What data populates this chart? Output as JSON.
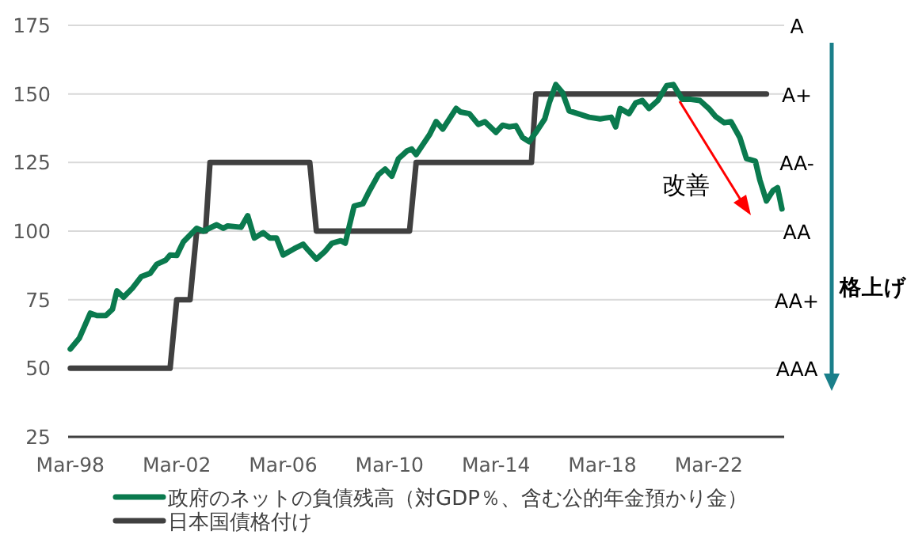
{
  "chart_data": {
    "type": "line",
    "annotations": [
      "改善",
      "格上げ",
      "AAA",
      "AA+",
      "AA",
      "AA-",
      "A+",
      "A"
    ],
    "x": [
      "1998-03",
      "1998-07",
      "1998-12",
      "1999-03",
      "1999-07",
      "1999-10",
      "1999-12",
      "2000-03",
      "2000-07",
      "2000-11",
      "2001-03",
      "2001-06",
      "2001-10",
      "2001-12",
      "2002-03",
      "2002-06",
      "2002-12",
      "2003-03",
      "2003-09",
      "2003-12",
      "2004-02",
      "2004-08",
      "2004-11",
      "2005-02",
      "2005-06",
      "2005-09",
      "2005-12",
      "2006-03",
      "2006-08",
      "2006-12",
      "2007-02",
      "2007-06",
      "2007-10",
      "2008-01",
      "2008-05",
      "2008-07",
      "2008-11",
      "2009-03",
      "2009-06",
      "2009-10",
      "2010-01",
      "2010-04",
      "2010-07",
      "2010-11",
      "2011-01",
      "2011-03",
      "2011-09",
      "2011-12",
      "2012-03",
      "2012-09",
      "2012-11",
      "2013-03",
      "2013-07",
      "2013-10",
      "2014-03",
      "2014-06",
      "2014-09",
      "2014-12",
      "2015-03",
      "2015-06",
      "2015-09",
      "2016-01",
      "2016-03",
      "2016-06",
      "2016-09",
      "2016-12",
      "2017-04",
      "2017-09",
      "2018-02",
      "2018-07",
      "2018-09",
      "2018-11",
      "2019-03",
      "2019-06",
      "2019-09",
      "2019-12",
      "2020-04",
      "2020-08",
      "2020-11",
      "2021-03",
      "2021-07",
      "2021-11",
      "2022-03",
      "2022-06",
      "2022-10",
      "2023-01",
      "2023-05",
      "2023-08",
      "2023-12",
      "2024-02",
      "2024-05",
      "2024-08",
      "2024-10",
      "2024-12"
    ],
    "series": [
      {
        "name": "政府のネットの負債残高（対GDP％、含む公的年金預かり金）",
        "color": "#0a7a4e",
        "values": [
          57.0,
          60.9,
          70.1,
          69.2,
          69.2,
          71.5,
          78.2,
          75.9,
          79.2,
          83.4,
          84.6,
          87.9,
          89.4,
          91.3,
          91.1,
          96.1,
          101,
          100,
          102.3,
          101,
          101.9,
          101.4,
          105.6,
          97.5,
          99.4,
          97.5,
          97.5,
          91.3,
          93.6,
          95.2,
          93.3,
          89.8,
          92.7,
          95.6,
          96.5,
          95.6,
          109.1,
          110,
          114.8,
          120.6,
          122.6,
          120,
          126.4,
          129.3,
          129.9,
          127.9,
          135.1,
          139.9,
          137.2,
          144.7,
          143.4,
          142.8,
          138.9,
          139.9,
          136,
          138.6,
          138,
          138.4,
          134.1,
          132.6,
          136,
          140.9,
          146.7,
          153.4,
          150.5,
          143.8,
          142.8,
          141.5,
          140.9,
          141.5,
          138,
          144.7,
          142.8,
          146.7,
          147.6,
          144.7,
          147.6,
          153,
          153.4,
          148,
          148,
          147.6,
          144.7,
          141.8,
          139.5,
          139.9,
          134.1,
          126.4,
          125.5,
          118.7,
          111,
          114.8,
          115.8,
          108.1
        ]
      },
      {
        "name": "日本国債格付け",
        "color": "#404040",
        "x": [
          "1998-03",
          "2001-12",
          "2002-03",
          "2002-09",
          "2002-12",
          "2003-04",
          "2003-06",
          "2007-03",
          "2007-06",
          "2010-12",
          "2011-03",
          "2015-07",
          "2015-09",
          "2024-05"
        ],
        "values": [
          50,
          50,
          75,
          75,
          100,
          100,
          125,
          125,
          100,
          100,
          125,
          125,
          150,
          150
        ]
      }
    ],
    "xlim": [
      "1998-02",
      "2025-01"
    ],
    "xticks": [
      {
        "value": "1998-03",
        "label": "Mar-98"
      },
      {
        "value": "2002-03",
        "label": "Mar-02"
      },
      {
        "value": "2006-03",
        "label": "Mar-06"
      },
      {
        "value": "2010-03",
        "label": "Mar-10"
      },
      {
        "value": "2014-03",
        "label": "Mar-14"
      },
      {
        "value": "2018-03",
        "label": "Mar-18"
      },
      {
        "value": "2022-03",
        "label": "Mar-22"
      }
    ],
    "ylim": [
      25,
      175
    ],
    "yticks": [
      25,
      50,
      75,
      100,
      125,
      150,
      175
    ],
    "grid": "y",
    "legend": "bottom",
    "marker": "none",
    "line_style": "solid"
  }
}
